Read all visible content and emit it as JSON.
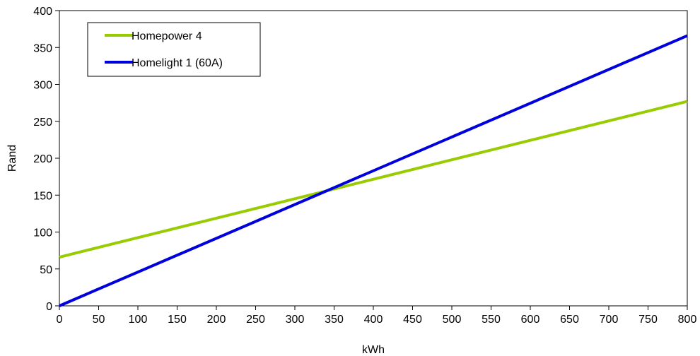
{
  "chart_data": {
    "type": "line",
    "title": "",
    "xlabel": "kWh",
    "ylabel": "Rand",
    "xlim": [
      0,
      800
    ],
    "ylim": [
      0,
      400
    ],
    "x_ticks": [
      0,
      50,
      100,
      150,
      200,
      250,
      300,
      350,
      400,
      450,
      500,
      550,
      600,
      650,
      700,
      750,
      800
    ],
    "y_ticks": [
      0,
      50,
      100,
      150,
      200,
      250,
      300,
      350,
      400
    ],
    "grid": false,
    "legend_position": "top-left",
    "series": [
      {
        "name": "Homepower 4",
        "color": "#99CC00",
        "x": [
          0,
          800
        ],
        "y": [
          66,
          277
        ]
      },
      {
        "name": "Homelight 1 (60A)",
        "color": "#0000DD",
        "x": [
          0,
          800
        ],
        "y": [
          0,
          366
        ]
      }
    ]
  }
}
